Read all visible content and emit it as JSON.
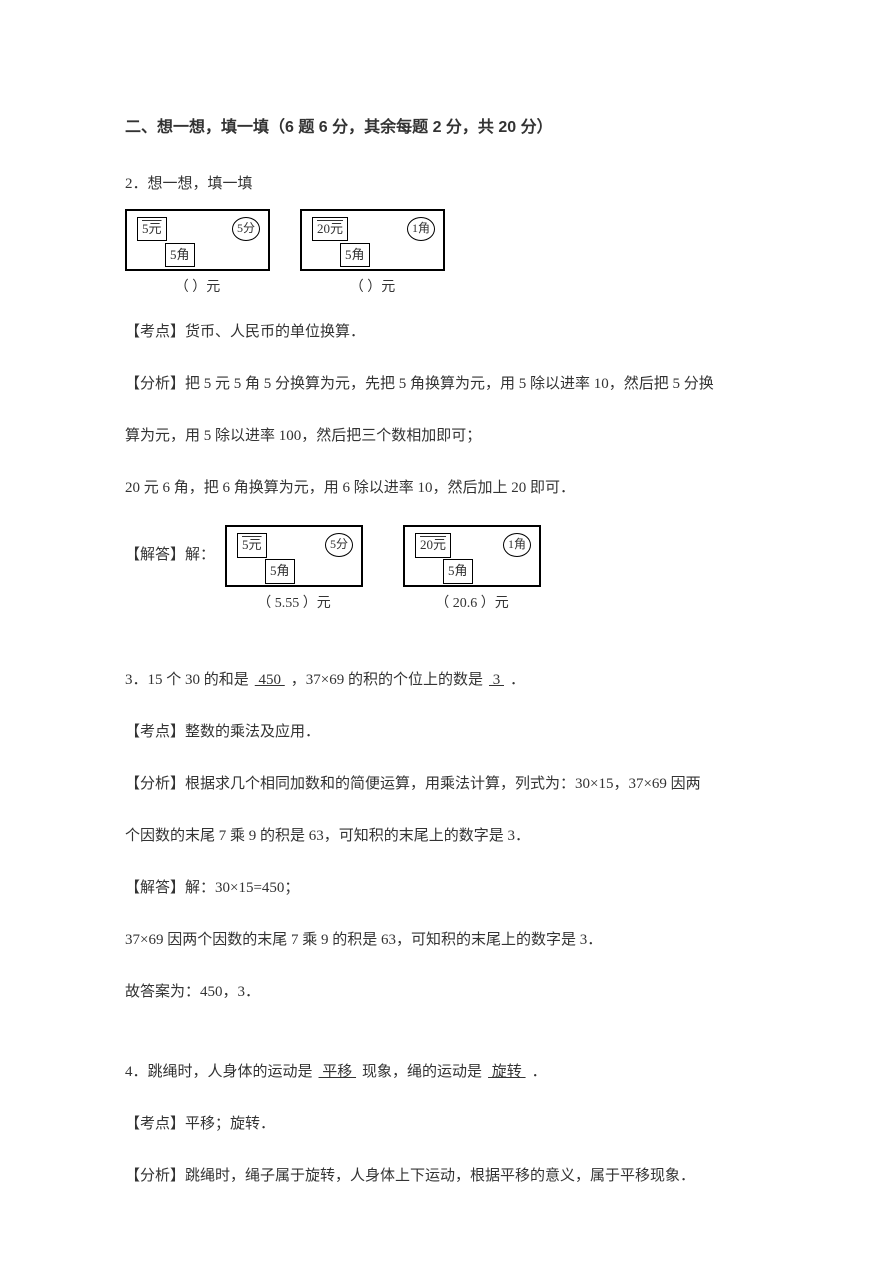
{
  "section": {
    "title": "二、想一想，填一填（6 题 6 分，其余每题 2 分，共 20 分）"
  },
  "q2": {
    "stem": "2．想一想，填一填",
    "box1": {
      "yuan": "5元",
      "jiao": "5角",
      "fen": "5分"
    },
    "box2": {
      "yuan": "20元",
      "jiao": "5角",
      "fen": "1角"
    },
    "caption_left": "（        ）元",
    "caption_right": "（        ）元",
    "kaopoint": "【考点】货币、人民币的单位换算．",
    "fenxi1": "【分析】把 5 元 5 角 5 分换算为元，先把 5 角换算为元，用 5 除以进率 10，然后把 5 分换",
    "fenxi2": "算为元，用 5 除以进率 100，然后把三个数相加即可；",
    "fenxi3": "20 元 6 角，把 6 角换算为元，用 6 除以进率 10，然后加上 20 即可．",
    "answer_prefix": "【解答】解：",
    "ans_box1": {
      "yuan": "5元",
      "jiao": "5角",
      "fen": "5分"
    },
    "ans_box2": {
      "yuan": "20元",
      "jiao": "5角",
      "fen": "1角"
    },
    "ans_caption_left": "（ 5.55 ）元",
    "ans_caption_right": "（ 20.6 ）元"
  },
  "q3": {
    "stem_pre": "3．15 个 30 的和是",
    "blank1": "  450  ",
    "stem_mid": "，37×69 的积的个位上的数是",
    "blank2": "  3  ",
    "stem_end": "．",
    "kaopoint": "【考点】整数的乘法及应用．",
    "fenxi1": "【分析】根据求几个相同加数和的简便运算，用乘法计算，列式为：30×15，37×69 因两",
    "fenxi2": "个因数的末尾 7 乘 9 的积是 63，可知积的末尾上的数字是 3．",
    "solve1": "【解答】解：30×15=450；",
    "solve2": "37×69 因两个因数的末尾 7 乘 9 的积是 63，可知积的末尾上的数字是 3．",
    "solve3": "故答案为：450，3．"
  },
  "q4": {
    "stem_pre": "4．跳绳时，人身体的运动是",
    "blank1": "  平移  ",
    "stem_mid": "现象，绳的运动是",
    "blank2": "  旋转  ",
    "stem_end": "．",
    "kaopoint": "【考点】平移；旋转．",
    "fenxi": "【分析】跳绳时，绳子属于旋转，人身体上下运动，根据平移的意义，属于平移现象．"
  }
}
